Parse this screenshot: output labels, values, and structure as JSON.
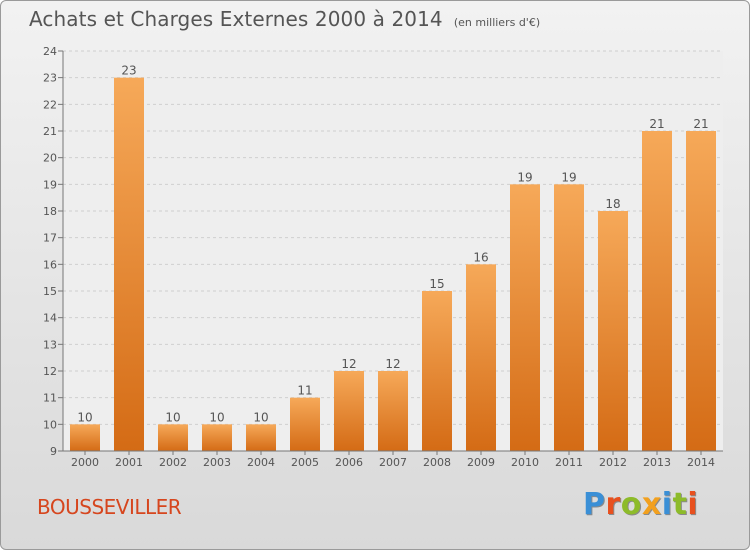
{
  "title": "Achats et Charges Externes 2000 à 2014",
  "subtitle": "(en milliers d'€)",
  "place": "BOUSSEVILLER",
  "logo": {
    "text": "Proxiti",
    "letters": [
      {
        "ch": "P",
        "color": "#3a8fd6"
      },
      {
        "ch": "r",
        "color": "#e8501e"
      },
      {
        "ch": "o",
        "color": "#8dbb2a"
      },
      {
        "ch": "x",
        "color": "#f2a01e"
      },
      {
        "ch": "i",
        "color": "#3a8fd6"
      },
      {
        "ch": "t",
        "color": "#8dbb2a"
      },
      {
        "ch": "i",
        "color": "#e8501e"
      }
    ]
  },
  "colors": {
    "bar_top": "#f6a959",
    "bar_bottom": "#d46b15",
    "plot_bg": "#eeeeee",
    "grid": "#cfcfcf",
    "text": "#555555"
  },
  "chart_data": {
    "type": "bar",
    "title": "Achats et Charges Externes 2000 à 2014",
    "xlabel": "",
    "ylabel": "",
    "categories": [
      "2000",
      "2001",
      "2002",
      "2003",
      "2004",
      "2005",
      "2006",
      "2007",
      "2008",
      "2009",
      "2010",
      "2011",
      "2012",
      "2013",
      "2014"
    ],
    "values": [
      10,
      23,
      10,
      10,
      10,
      11,
      12,
      12,
      15,
      16,
      19,
      19,
      18,
      21,
      21
    ],
    "ylim": [
      9,
      24
    ],
    "yticks": [
      9,
      10,
      11,
      12,
      13,
      14,
      15,
      16,
      17,
      18,
      19,
      20,
      21,
      22,
      23,
      24
    ],
    "grid": true,
    "data_labels": true
  }
}
